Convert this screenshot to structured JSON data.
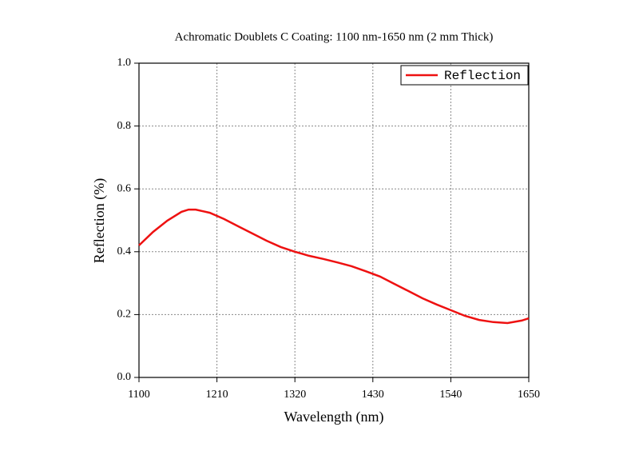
{
  "chart_data": {
    "type": "line",
    "title": "Achromatic Doublets C Coating: 1100 nm-1650 nm (2 mm Thick)",
    "x_label": "Wavelength (nm)",
    "y_label": "Reflection (%)",
    "x": [
      1100,
      1120,
      1140,
      1160,
      1170,
      1180,
      1200,
      1220,
      1240,
      1260,
      1280,
      1300,
      1320,
      1340,
      1360,
      1380,
      1400,
      1420,
      1440,
      1460,
      1480,
      1500,
      1520,
      1540,
      1560,
      1580,
      1600,
      1620,
      1640,
      1650
    ],
    "series": [
      {
        "name": "Reflection",
        "color": "#ee1111",
        "values": [
          0.42,
          0.463,
          0.499,
          0.527,
          0.534,
          0.534,
          0.524,
          0.504,
          0.481,
          0.458,
          0.435,
          0.415,
          0.4,
          0.387,
          0.377,
          0.366,
          0.354,
          0.338,
          0.321,
          0.298,
          0.275,
          0.252,
          0.232,
          0.214,
          0.196,
          0.183,
          0.176,
          0.173,
          0.181,
          0.188
        ]
      }
    ],
    "xlim": [
      1100,
      1650
    ],
    "xticks": [
      1100,
      1210,
      1320,
      1430,
      1540,
      1650
    ],
    "ylim": [
      0,
      1
    ],
    "yticks": [
      {
        "value": 0,
        "label": "0.0"
      },
      0.2,
      0.4,
      0.6,
      0.8,
      {
        "value": 1,
        "label": "1.0"
      }
    ],
    "grid": true,
    "legend": "top-right"
  }
}
